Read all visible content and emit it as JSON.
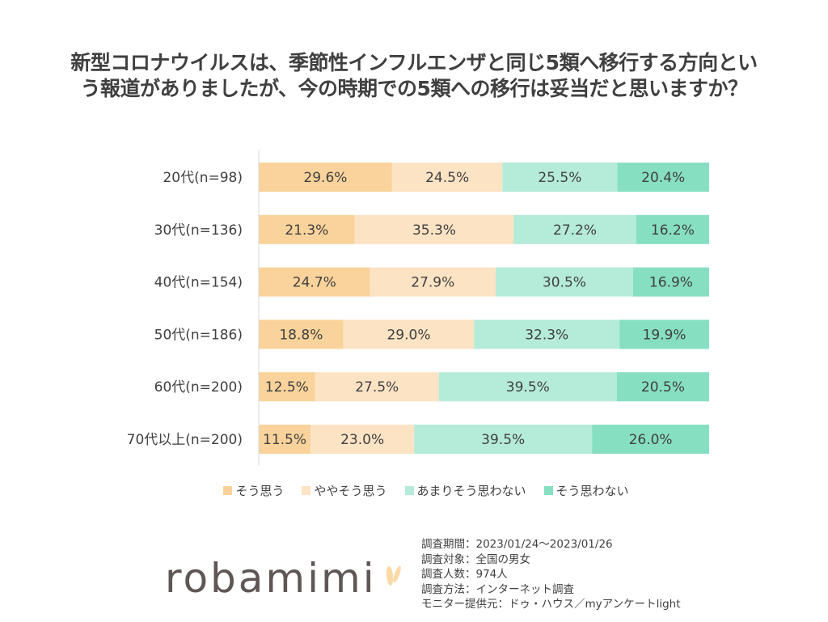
{
  "title_lines": [
    "新型コロナウイルスは、季節性インフルエンザと同じ5類へ移行する方向とい",
    "う報道がありましたが、今の時期での5類への移行は妥当だと思いますか？"
  ],
  "chart_data": {
    "type": "bar",
    "orientation": "horizontal-stacked-100",
    "title": "新型コロナウイルスは、季節性インフルエンザと同じ5類へ移行する方向という報道がありましたが、今の時期での5類への移行は妥当だと思いますか？",
    "categories": [
      "20代(n=98)",
      "30代(n=136)",
      "40代(n=154)",
      "50代(n=186)",
      "60代(n=200)",
      "70代以上(n=200)"
    ],
    "series": [
      {
        "name": "そう思う",
        "color": "#F9D39B",
        "values": [
          29.6,
          21.3,
          24.7,
          18.8,
          12.5,
          11.5
        ]
      },
      {
        "name": "ややそう思う",
        "color": "#FCE3C4",
        "values": [
          24.5,
          35.3,
          27.9,
          29.0,
          27.5,
          23.0
        ]
      },
      {
        "name": "あまりそう思わない",
        "color": "#B5EBD9",
        "values": [
          25.5,
          27.2,
          30.5,
          32.3,
          39.5,
          39.5
        ]
      },
      {
        "name": "そう思わない",
        "color": "#87DFC2",
        "values": [
          20.4,
          16.2,
          16.9,
          19.9,
          20.5,
          26.0
        ]
      }
    ],
    "data_label_format": "%.1f%",
    "legend": "bottom",
    "grid": false
  },
  "logo_text": "robamimi",
  "notes": [
    "調査期間：2023/01/24～2023/01/26",
    "調査対象：全国の男女",
    "調査人数：974人",
    "調査方法：インターネット調査",
    "モニター提供元：ドゥ・ハウス／myアンケートlight"
  ]
}
